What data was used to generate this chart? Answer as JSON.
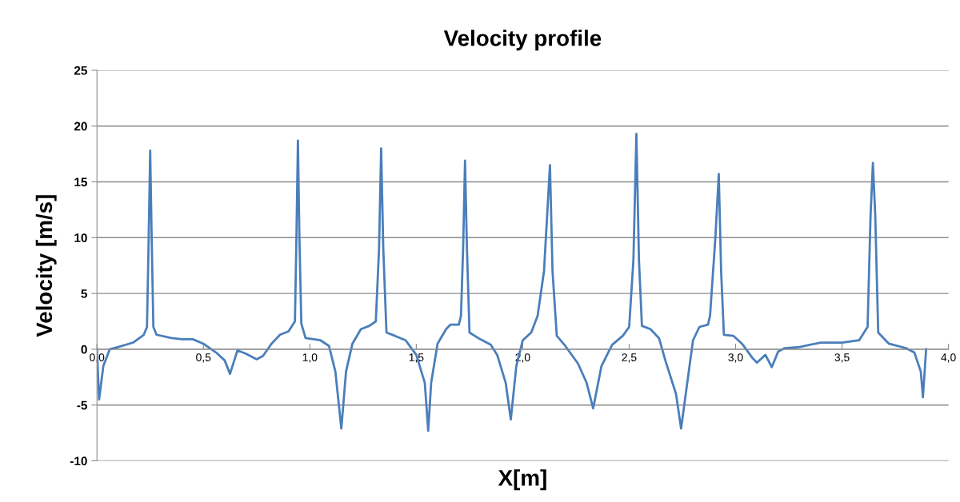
{
  "chart_data": {
    "type": "line",
    "title": "Velocity profile",
    "xlabel": "X[m]",
    "ylabel": "Velocity [m/s]",
    "x": [
      0,
      0.01,
      0.03,
      0.06,
      0.1,
      0.17,
      0.22,
      0.235,
      0.243,
      0.25,
      0.257,
      0.265,
      0.28,
      0.35,
      0.4,
      0.45,
      0.5,
      0.56,
      0.6,
      0.625,
      0.66,
      0.7,
      0.75,
      0.78,
      0.82,
      0.86,
      0.9,
      0.93,
      0.937,
      0.944,
      0.951,
      0.96,
      0.98,
      1.05,
      1.09,
      1.12,
      1.148,
      1.17,
      1.2,
      1.24,
      1.28,
      1.31,
      1.325,
      1.335,
      1.345,
      1.36,
      1.4,
      1.45,
      1.5,
      1.54,
      1.556,
      1.57,
      1.6,
      1.64,
      1.66,
      1.7,
      1.71,
      1.72,
      1.729,
      1.738,
      1.75,
      1.8,
      1.85,
      1.88,
      1.92,
      1.944,
      1.97,
      2.0,
      2.04,
      2.07,
      2.1,
      2.128,
      2.14,
      2.16,
      2.2,
      2.26,
      2.3,
      2.331,
      2.37,
      2.42,
      2.47,
      2.5,
      2.52,
      2.534,
      2.546,
      2.56,
      2.6,
      2.64,
      2.67,
      2.72,
      2.744,
      2.78,
      2.8,
      2.83,
      2.87,
      2.88,
      2.905,
      2.921,
      2.932,
      2.945,
      2.99,
      3.03,
      3.08,
      3.1,
      3.14,
      3.17,
      3.2,
      3.23,
      3.3,
      3.4,
      3.5,
      3.58,
      3.62,
      3.634,
      3.645,
      3.656,
      3.67,
      3.72,
      3.8,
      3.84,
      3.87,
      3.88,
      3.895
    ],
    "series": [
      {
        "color": "#4a7ebb",
        "values": [
          0,
          -4.5,
          -1.5,
          0,
          0.2,
          0.6,
          1.3,
          2,
          10,
          17.8,
          10,
          2,
          1.3,
          1.0,
          0.9,
          0.9,
          0.5,
          -0.3,
          -1,
          -2.2,
          -0.1,
          -0.4,
          -0.9,
          -0.6,
          0.5,
          1.3,
          1.6,
          2.5,
          10,
          18.7,
          10,
          2.3,
          1.0,
          0.8,
          0.3,
          -2,
          -7.1,
          -2,
          0.5,
          1.8,
          2.1,
          2.5,
          9,
          18,
          9,
          1.5,
          1.2,
          0.8,
          -0.5,
          -3,
          -7.3,
          -3,
          0.5,
          1.8,
          2.2,
          2.2,
          3,
          9,
          16.9,
          9,
          1.5,
          0.9,
          0.4,
          -0.5,
          -3,
          -6.3,
          -1.5,
          0.8,
          1.5,
          3,
          7,
          16.5,
          7,
          1.2,
          0.3,
          -1.3,
          -3,
          -5.3,
          -1.5,
          0.4,
          1.2,
          2,
          8,
          19.3,
          8,
          2.1,
          1.8,
          1,
          -1,
          -4,
          -7.1,
          -2,
          0.8,
          2,
          2.2,
          3,
          10,
          15.7,
          7,
          1.3,
          1.2,
          0.5,
          -0.8,
          -1.2,
          -0.5,
          -1.6,
          -0.2,
          0.1,
          0.2,
          0.6,
          0.6,
          0.8,
          2,
          12,
          16.7,
          12,
          1.5,
          0.5,
          0.1,
          -0.3,
          -2,
          -4.3,
          0
        ]
      }
    ],
    "xlim": [
      0,
      4
    ],
    "ylim": [
      -10,
      25
    ],
    "xticks": [
      {
        "value": 0,
        "label": "0,0"
      },
      {
        "value": 0.5,
        "label": "0,5"
      },
      {
        "value": 1,
        "label": "1,0"
      },
      {
        "value": 1.5,
        "label": "1,5"
      },
      {
        "value": 2,
        "label": "2,0"
      },
      {
        "value": 2.5,
        "label": "2,5"
      },
      {
        "value": 3,
        "label": "3,0"
      },
      {
        "value": 3.5,
        "label": "3,5"
      },
      {
        "value": 4,
        "label": "4,0"
      }
    ],
    "yticks": [
      -10,
      -5,
      0,
      5,
      10,
      15,
      20,
      25
    ],
    "grid": "y",
    "marker": "none",
    "line_style": "solid"
  }
}
